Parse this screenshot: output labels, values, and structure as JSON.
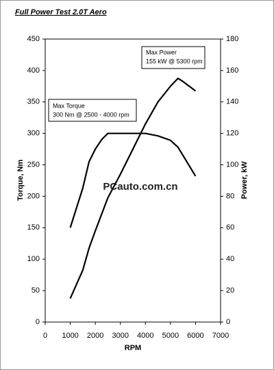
{
  "chart_data": {
    "type": "line",
    "title": "Full Power Test 2.0T Aero",
    "x_label": "RPM",
    "y_label": "Torque, Nm",
    "y2_label": "Power, kW",
    "xlim": [
      0,
      7000
    ],
    "xticks": [
      0,
      1000,
      2000,
      3000,
      4000,
      5000,
      6000,
      7000
    ],
    "ylim": [
      0,
      450
    ],
    "yticks": [
      0,
      50,
      100,
      150,
      200,
      250,
      300,
      350,
      400,
      450
    ],
    "y2lim": [
      0,
      180
    ],
    "y2ticks": [
      0,
      20,
      40,
      60,
      80,
      100,
      120,
      140,
      160,
      180
    ],
    "grid": false,
    "series": [
      {
        "color": "#000000",
        "x": [
          1000,
          1500,
          1750,
          2000,
          2250,
          2500,
          3000,
          3500,
          4000,
          4500,
          5000,
          5300,
          5500,
          6000
        ],
        "values": [
          150,
          213,
          255,
          275,
          290,
          300,
          300,
          300,
          300,
          296,
          289,
          278,
          265,
          232
        ]
      },
      {
        "color": "#000000",
        "axis": "y2",
        "x": [
          1000,
          1500,
          1750,
          2000,
          2500,
          3000,
          3500,
          4000,
          4500,
          5000,
          5300,
          5500,
          6000
        ],
        "values": [
          15,
          33,
          47,
          58,
          79,
          94,
          110,
          126,
          140,
          150,
          155,
          153,
          147
        ]
      }
    ],
    "annotations": [
      {
        "lines": [
          "Max Power",
          "155 kW @ 5300 rpm"
        ]
      },
      {
        "lines": [
          "Max Torque",
          "300 Nm @ 2500 - 4000 rpm"
        ]
      }
    ],
    "watermark": "PCauto.com.cn"
  }
}
